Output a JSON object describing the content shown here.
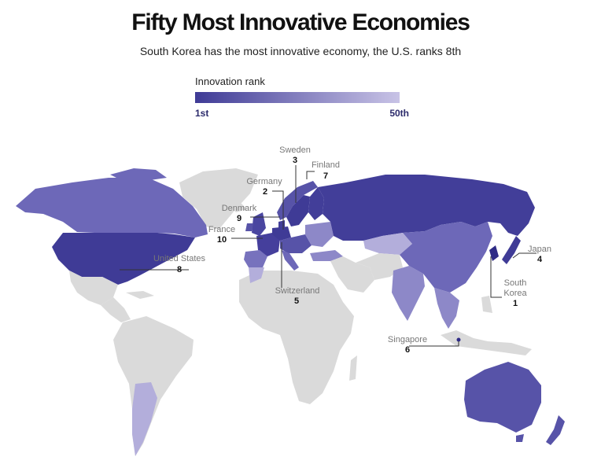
{
  "title": "Fifty Most Innovative Economies",
  "subtitle": "South Korea has the most innovative economy, the U.S. ranks 8th",
  "legend": {
    "title": "Innovation rank",
    "min_label": "1st",
    "max_label": "50th",
    "color_start": "#3f3b96",
    "color_end": "#c8c3e6"
  },
  "colors": {
    "no_data": "#dadada",
    "rank_top": "#3f3b96",
    "rank_mid": "#6d68b8",
    "rank_low": "#b3aedb"
  },
  "callouts": [
    {
      "name": "Sweden",
      "rank": "3"
    },
    {
      "name": "Finland",
      "rank": "7"
    },
    {
      "name": "Germany",
      "rank": "2"
    },
    {
      "name": "Denmark",
      "rank": "9"
    },
    {
      "name": "France",
      "rank": "10"
    },
    {
      "name": "United States",
      "rank": "8"
    },
    {
      "name": "Switzerland",
      "rank": "5"
    },
    {
      "name": "Japan",
      "rank": "4"
    },
    {
      "name": "South Korea",
      "rank": "1"
    },
    {
      "name": "Singapore",
      "rank": "6"
    }
  ]
}
